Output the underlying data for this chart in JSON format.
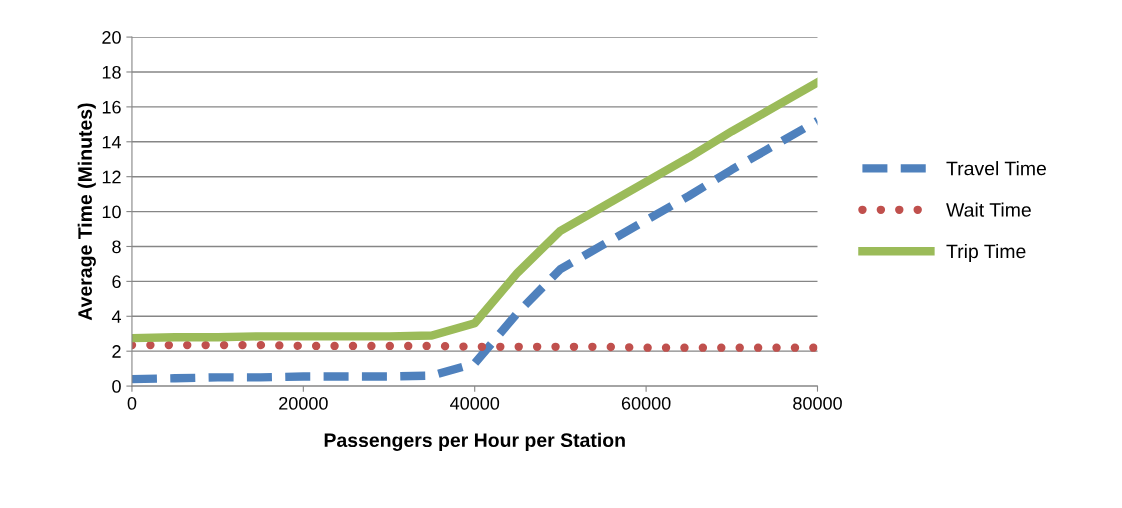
{
  "chart_data": {
    "type": "line",
    "xlabel": "Passengers per Hour per Station",
    "ylabel": "Average Time (Minutes)",
    "x": [
      0,
      5000,
      10000,
      15000,
      20000,
      25000,
      30000,
      35000,
      40000,
      45000,
      50000,
      55000,
      60000,
      65000,
      70000,
      75000,
      80000
    ],
    "series": [
      {
        "name": "Travel Time",
        "color": "#4f81bd",
        "line_style": "dashed",
        "values": [
          0.4,
          0.45,
          0.5,
          0.5,
          0.55,
          0.55,
          0.55,
          0.6,
          1.3,
          4.2,
          6.7,
          8.1,
          9.5,
          10.9,
          12.4,
          13.8,
          15.2
        ]
      },
      {
        "name": "Wait Time",
        "color": "#c0504d",
        "line_style": "dotted",
        "values": [
          2.35,
          2.35,
          2.35,
          2.35,
          2.3,
          2.3,
          2.3,
          2.3,
          2.25,
          2.25,
          2.25,
          2.25,
          2.2,
          2.2,
          2.2,
          2.2,
          2.2
        ]
      },
      {
        "name": "Trip Time",
        "color": "#9bbb59",
        "line_style": "solid",
        "values": [
          2.75,
          2.8,
          2.8,
          2.85,
          2.85,
          2.85,
          2.85,
          2.9,
          3.6,
          6.5,
          8.9,
          10.3,
          11.7,
          13.1,
          14.6,
          16.0,
          17.4
        ]
      }
    ],
    "xlim": [
      0,
      80000
    ],
    "xticks": [
      0,
      20000,
      40000,
      60000,
      80000
    ],
    "ylim": [
      0,
      20
    ],
    "yticks": [
      0,
      2,
      4,
      6,
      8,
      10,
      12,
      14,
      16,
      18,
      20
    ],
    "grid": "y",
    "legend": "right",
    "marker": "none"
  }
}
